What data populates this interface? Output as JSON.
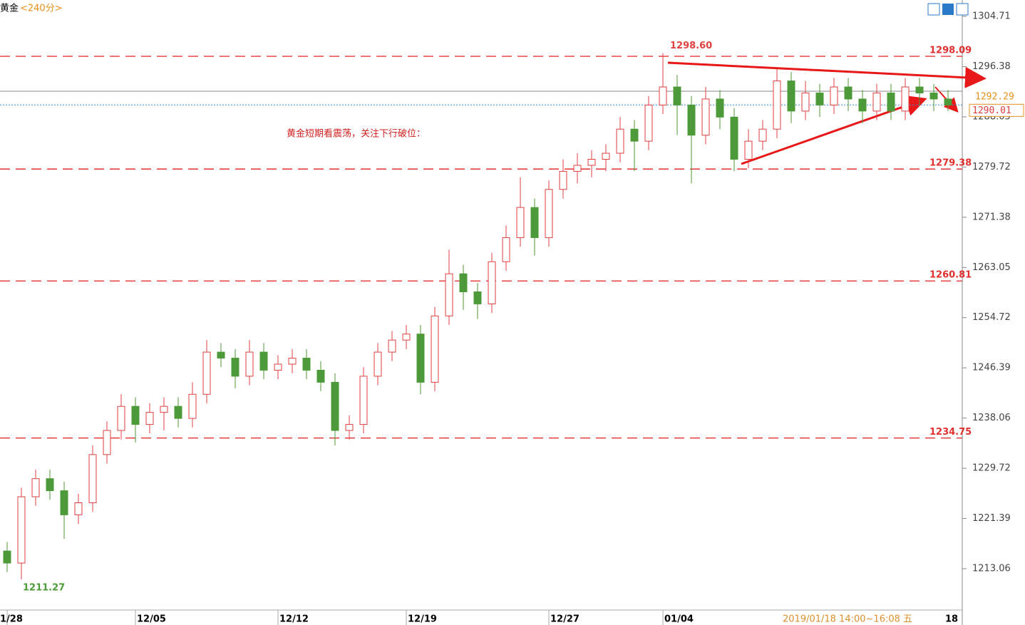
{
  "chart_data": {
    "type": "candlestick",
    "title": "黄金",
    "period": "<240分>",
    "annotation": "黄金短期看震荡，关注下行破位：",
    "status_text": "2019/01/18 14:00~16:08 五",
    "status_right": "18",
    "ylim": [
      1206.32,
      1307.43
    ],
    "yticks": [
      1304.71,
      1296.38,
      1288.05,
      1279.72,
      1271.38,
      1263.05,
      1254.72,
      1246.39,
      1238.06,
      1229.72,
      1221.39,
      1213.06
    ],
    "up_color": "#e04040",
    "down_color": "#4c9a38",
    "levels": [
      1298.09,
      1279.38,
      1260.81,
      1234.75
    ],
    "level_color": "#e02020",
    "last_price": 1292.29,
    "bid_price": 1290.01,
    "high_label": {
      "value": 1298.6,
      "label": "1298.60"
    },
    "low_label": 1211.27,
    "categories": [
      "1/28",
      null,
      null,
      null,
      null,
      null,
      null,
      null,
      null,
      "12/05",
      null,
      null,
      null,
      null,
      null,
      null,
      null,
      null,
      null,
      "12/12",
      null,
      null,
      null,
      null,
      null,
      null,
      null,
      null,
      "12/19",
      null,
      null,
      null,
      null,
      null,
      null,
      null,
      null,
      null,
      "12/27",
      null,
      null,
      null,
      null,
      null,
      null,
      null,
      "01/04",
      null,
      null,
      null,
      null,
      null,
      null,
      null,
      null,
      null,
      null,
      null,
      null,
      null,
      null,
      null,
      null,
      null,
      null,
      null,
      null
    ],
    "ohlc": [
      [
        1216,
        1217.5,
        1212.5,
        1214
      ],
      [
        1214,
        1226.5,
        1211.27,
        1225
      ],
      [
        1225,
        1229.5,
        1223.5,
        1228
      ],
      [
        1228,
        1229.5,
        1224.5,
        1226
      ],
      [
        1226,
        1227.5,
        1218,
        1222
      ],
      [
        1222,
        1225.5,
        1220.5,
        1224
      ],
      [
        1224,
        1233.5,
        1222.5,
        1232
      ],
      [
        1232,
        1237.5,
        1230.5,
        1236
      ],
      [
        1236,
        1242,
        1234.5,
        1240
      ],
      [
        1240,
        1241.5,
        1234,
        1237
      ],
      [
        1237,
        1240.5,
        1235.5,
        1239
      ],
      [
        1239,
        1241.5,
        1236,
        1240
      ],
      [
        1240,
        1241.5,
        1236.5,
        1238
      ],
      [
        1238,
        1244,
        1236.5,
        1242
      ],
      [
        1242,
        1251,
        1240.5,
        1249
      ],
      [
        1249,
        1250.5,
        1246.5,
        1248
      ],
      [
        1248,
        1249.5,
        1243,
        1245
      ],
      [
        1245,
        1251,
        1243.5,
        1249
      ],
      [
        1249,
        1250.5,
        1244.5,
        1246
      ],
      [
        1246,
        1248.5,
        1244.5,
        1247
      ],
      [
        1247,
        1249.5,
        1245.5,
        1248
      ],
      [
        1248,
        1249.5,
        1244.5,
        1246
      ],
      [
        1246,
        1247.5,
        1242.5,
        1244
      ],
      [
        1244,
        1245.5,
        1233.5,
        1236
      ],
      [
        1236,
        1238.5,
        1234.5,
        1237
      ],
      [
        1237,
        1246.5,
        1235.5,
        1245
      ],
      [
        1245,
        1250.5,
        1243.5,
        1249
      ],
      [
        1249,
        1252.5,
        1247.5,
        1251
      ],
      [
        1251,
        1253.5,
        1249.5,
        1252
      ],
      [
        1252,
        1253.5,
        1242,
        1244
      ],
      [
        1244,
        1256.5,
        1242.5,
        1255
      ],
      [
        1255,
        1266,
        1253.5,
        1262
      ],
      [
        1262,
        1263.5,
        1256,
        1259
      ],
      [
        1259,
        1260.5,
        1254.5,
        1257
      ],
      [
        1257,
        1265.5,
        1255.5,
        1264
      ],
      [
        1264,
        1270,
        1262.5,
        1268
      ],
      [
        1268,
        1278,
        1266.5,
        1273
      ],
      [
        1273,
        1274.5,
        1265,
        1268
      ],
      [
        1268,
        1277.5,
        1266.5,
        1276
      ],
      [
        1276,
        1281,
        1274.5,
        1279
      ],
      [
        1279,
        1282,
        1277,
        1280
      ],
      [
        1280,
        1282.5,
        1278,
        1281
      ],
      [
        1281,
        1283.5,
        1279,
        1282
      ],
      [
        1282,
        1288,
        1280.5,
        1286
      ],
      [
        1286,
        1287.5,
        1279,
        1284
      ],
      [
        1284,
        1291.5,
        1282.5,
        1290
      ],
      [
        1290,
        1298.6,
        1288.5,
        1293
      ],
      [
        1293,
        1295,
        1285,
        1290
      ],
      [
        1290,
        1291.5,
        1277,
        1285
      ],
      [
        1285,
        1293,
        1283.5,
        1291
      ],
      [
        1291,
        1292.5,
        1286,
        1288
      ],
      [
        1288,
        1289.5,
        1279,
        1281
      ],
      [
        1281,
        1286,
        1279.5,
        1284
      ],
      [
        1284,
        1287.5,
        1282.5,
        1286
      ],
      [
        1286,
        1296,
        1284.5,
        1294
      ],
      [
        1294,
        1295.5,
        1287,
        1289
      ],
      [
        1289,
        1294,
        1287.5,
        1292
      ],
      [
        1292,
        1293.5,
        1288,
        1290
      ],
      [
        1290,
        1294.5,
        1288.5,
        1293
      ],
      [
        1293,
        1294.5,
        1289,
        1291
      ],
      [
        1291,
        1292.5,
        1287,
        1289
      ],
      [
        1289,
        1293.5,
        1287.5,
        1292
      ],
      [
        1292,
        1293.5,
        1287.5,
        1289
      ],
      [
        1289,
        1294.5,
        1287.5,
        1293
      ],
      [
        1293,
        1294.5,
        1290,
        1292
      ],
      [
        1292,
        1293.5,
        1289,
        1291
      ],
      [
        1291,
        1292.5,
        1289,
        1290
      ]
    ]
  }
}
